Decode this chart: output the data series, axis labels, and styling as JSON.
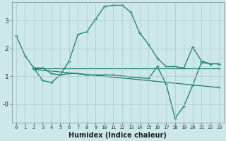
{
  "title": "",
  "xlabel": "Humidex (Indice chaleur)",
  "bg_color": "#cce8e8",
  "line_color": "#1a7a6e",
  "grid_color": "#b0d4d4",
  "xlim": [
    -0.5,
    23.5
  ],
  "ylim": [
    -0.65,
    3.65
  ],
  "yticks": [
    0,
    1,
    2,
    3
  ],
  "ytick_labels": [
    "-0",
    "1",
    "2",
    "3"
  ],
  "xticks": [
    0,
    1,
    2,
    3,
    4,
    5,
    6,
    7,
    8,
    9,
    10,
    11,
    12,
    13,
    14,
    15,
    16,
    17,
    18,
    19,
    20,
    21,
    22,
    23
  ],
  "lines": [
    {
      "x": [
        0,
        1,
        2,
        3,
        4,
        5,
        6,
        7,
        8,
        9,
        10,
        11,
        12,
        13,
        14,
        15,
        16,
        17,
        18,
        19,
        20,
        21,
        22,
        23
      ],
      "y": [
        2.45,
        1.75,
        1.3,
        1.3,
        1.1,
        1.05,
        1.55,
        2.5,
        2.6,
        3.05,
        3.5,
        3.55,
        3.55,
        3.3,
        2.55,
        2.15,
        1.65,
        1.35,
        1.35,
        1.3,
        2.05,
        1.55,
        1.45,
        1.45
      ]
    },
    {
      "x": [
        2,
        3,
        4,
        5,
        6,
        7,
        8,
        9,
        10,
        11,
        12,
        13,
        14,
        15,
        16,
        17,
        18,
        19,
        20,
        21,
        22,
        23
      ],
      "y": [
        1.3,
        0.85,
        0.78,
        1.05,
        1.1,
        1.1,
        1.05,
        1.05,
        1.05,
        1.05,
        1.02,
        0.98,
        0.95,
        0.92,
        1.35,
        0.72,
        -0.5,
        -0.07,
        0.68,
        1.5,
        1.45,
        1.45
      ]
    },
    {
      "x": [
        2,
        23
      ],
      "y": [
        1.28,
        1.28
      ]
    },
    {
      "x": [
        2,
        23
      ],
      "y": [
        1.25,
        0.6
      ]
    }
  ]
}
